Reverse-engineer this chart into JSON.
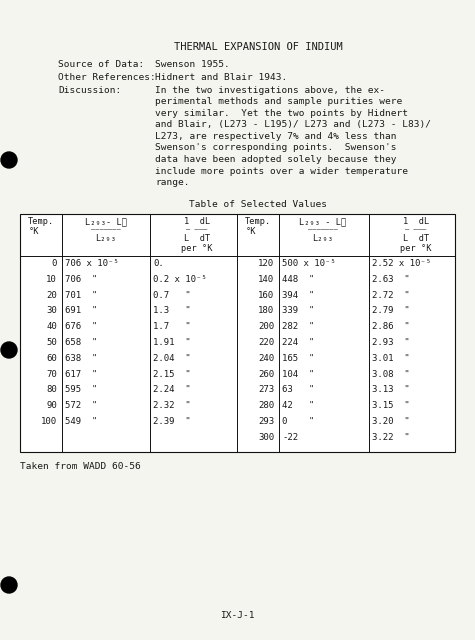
{
  "title": "THERMAL EXPANSION OF INDIUM",
  "source_label": "Source of Data:",
  "source_value": "Swenson 1955.",
  "other_ref_label": "Other References:",
  "other_ref_value": "Hidnert and Blair 1943.",
  "discussion_label": "Discussion:",
  "disc_lines": [
    "In the two investigations above, the ex-",
    "perimental methods and sample purities were",
    "very similar.  Yet the two points by Hidnert",
    "and Blair, (L273 - L195)/ L273 and (L273 - L83)/",
    "L273, are respectively 7% and 4% less than",
    "Swenson's corresponding points.  Swenson's",
    "data have been adopted solely because they",
    "include more points over a wider temperature",
    "range."
  ],
  "table_title": "Table of Selected Values",
  "footer": "Taken from WADD 60-56",
  "page_label": "IX-J-1",
  "left_data": [
    [
      0,
      "706 x 10⁻⁵",
      "0."
    ],
    [
      10,
      "706  \"",
      "0.2 x 10⁻⁵"
    ],
    [
      20,
      "701  \"",
      "0.7   \""
    ],
    [
      30,
      "691  \"",
      "1.3   \""
    ],
    [
      40,
      "676  \"",
      "1.7   \""
    ],
    [
      50,
      "658  \"",
      "1.91  \""
    ],
    [
      60,
      "638  \"",
      "2.04  \""
    ],
    [
      70,
      "617  \"",
      "2.15  \""
    ],
    [
      80,
      "595  \"",
      "2.24  \""
    ],
    [
      90,
      "572  \"",
      "2.32  \""
    ],
    [
      100,
      "549  \"",
      "2.39  \""
    ]
  ],
  "right_data": [
    [
      120,
      "500 x 10⁻⁵",
      "2.52 x 10⁻⁵"
    ],
    [
      140,
      "448  \"",
      "2.63  \""
    ],
    [
      160,
      "394  \"",
      "2.72  \""
    ],
    [
      180,
      "339  \"",
      "2.79  \""
    ],
    [
      200,
      "282  \"",
      "2.86  \""
    ],
    [
      220,
      "224  \"",
      "2.93  \""
    ],
    [
      240,
      "165  \"",
      "3.01  \""
    ],
    [
      260,
      "104  \"",
      "3.08  \""
    ],
    [
      273,
      "63   \"",
      "3.13  \""
    ],
    [
      280,
      "42   \"",
      "3.15  \""
    ],
    [
      293,
      "0    \"",
      "3.20  \""
    ],
    [
      300,
      "-22",
      "3.22  \""
    ]
  ],
  "background": "#f5f5f0",
  "text_color": "#1a1a1a"
}
